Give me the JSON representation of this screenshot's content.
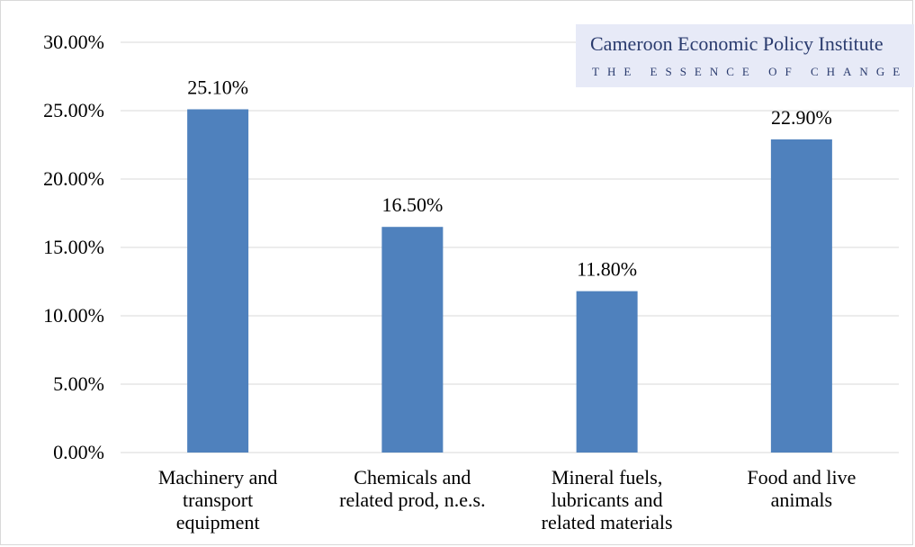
{
  "logo": {
    "name": "Cameroon Economic Policy Institute",
    "tagline": "THE ESSENCE OF CHANGE"
  },
  "chart_data": {
    "type": "bar",
    "categories": [
      [
        "Machinery and",
        "transport",
        "equipment"
      ],
      [
        "Chemicals and",
        "related prod, n.e.s."
      ],
      [
        "Mineral fuels,",
        "lubricants and",
        "related materials"
      ],
      [
        "Food and live",
        "animals"
      ]
    ],
    "values": [
      25.1,
      16.5,
      11.8,
      22.9
    ],
    "data_labels": [
      "25.10%",
      "16.50%",
      "11.80%",
      "22.90%"
    ],
    "y_ticks": [
      0,
      5,
      10,
      15,
      20,
      25,
      30
    ],
    "y_tick_labels": [
      "0.00%",
      "5.00%",
      "10.00%",
      "15.00%",
      "20.00%",
      "25.00%",
      "30.00%"
    ],
    "ylim": [
      0,
      30
    ],
    "grid": true,
    "bar_color": "#4f81bd",
    "grid_color": "#d9d9d9",
    "title": "",
    "xlabel": "",
    "ylabel": ""
  }
}
